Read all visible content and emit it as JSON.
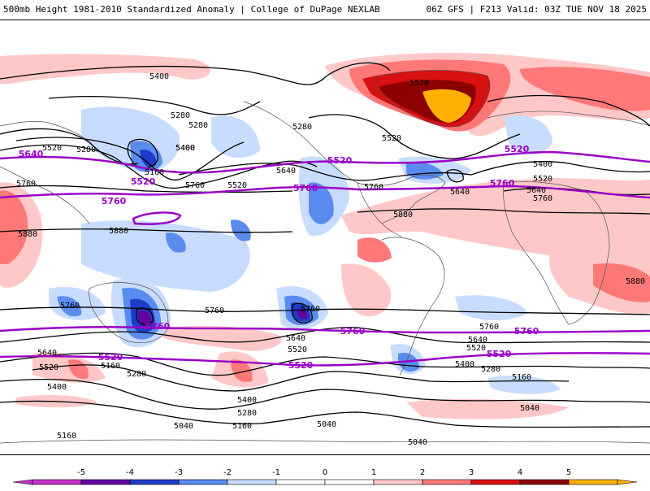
{
  "header": {
    "title_left": "500mb Height 1981-2010 Standardized Anomaly | College of DuPage NEXLAB",
    "title_right": "06Z GFS | F213 Valid: 03Z TUE NOV 18 2025"
  },
  "colors": {
    "anom_pos_1": "#ffc8c8",
    "anom_pos_2": "#ff7878",
    "anom_pos_3": "#d81010",
    "anom_pos_4": "#8c0000",
    "anom_pos_5": "#ffb000",
    "anom_neg_1": "#c8dcff",
    "anom_neg_2": "#5a8cf0",
    "anom_neg_3": "#1e3cc8",
    "anom_neg_4": "#6400a0",
    "contour": "#000000",
    "highlight_contour": "#9a00c8",
    "coast": "#505050"
  },
  "contour_labels": [
    {
      "text": "5400",
      "name": "label-5400-npac-north"
    },
    {
      "text": "5520",
      "name": "label-5520-greenland"
    },
    {
      "text": "5280",
      "name": "label-5280-pacific-a"
    },
    {
      "text": "5280",
      "name": "label-5280-pacific-b"
    },
    {
      "text": "5280",
      "name": "label-5280-canada"
    },
    {
      "text": "5400",
      "name": "label-5400-canada"
    },
    {
      "text": "5520",
      "name": "label-5520-atlantic"
    },
    {
      "text": "5520",
      "name": "label-5520-asia-west"
    },
    {
      "text": "5280",
      "name": "label-5280-asia-west"
    },
    {
      "text": "5400",
      "name": "label-5400-pacific"
    },
    {
      "text": "5160",
      "name": "label-5160-pacific"
    },
    {
      "text": "5640",
      "name": "label-5640-usa"
    },
    {
      "text": "5520",
      "name": "label-5520-pacific-mid"
    },
    {
      "text": "5760",
      "name": "label-5760-pacific-mid"
    },
    {
      "text": "5760",
      "name": "label-5760-west"
    },
    {
      "text": "5760",
      "name": "label-5760-gulf"
    },
    {
      "text": "5880",
      "name": "label-5880-caribbean"
    },
    {
      "text": "5640",
      "name": "label-5640-atlantic"
    },
    {
      "text": "5520",
      "name": "label-5520-europe"
    },
    {
      "text": "5400",
      "name": "label-5400-europe"
    },
    {
      "text": "5640",
      "name": "label-5640-europe"
    },
    {
      "text": "5760",
      "name": "label-5760-europe"
    },
    {
      "text": "5880",
      "name": "label-5880-westpac"
    },
    {
      "text": "5880",
      "name": "label-5880-africa-west"
    },
    {
      "text": "5880",
      "name": "label-5880-indian"
    },
    {
      "text": "5760",
      "name": "label-5760-indian-a"
    },
    {
      "text": "5760",
      "name": "label-5760-spac-a"
    },
    {
      "text": "5760",
      "name": "label-5760-spac-b"
    },
    {
      "text": "5760",
      "name": "label-5760-satl"
    },
    {
      "text": "5640",
      "name": "label-5640-spac"
    },
    {
      "text": "5520",
      "name": "label-5520-spac"
    },
    {
      "text": "5640",
      "name": "label-5640-satl"
    },
    {
      "text": "5520",
      "name": "label-5520-satl"
    },
    {
      "text": "5400",
      "name": "label-5400-satl"
    },
    {
      "text": "5280",
      "name": "label-5280-satl"
    },
    {
      "text": "5160",
      "name": "label-5160-satl"
    },
    {
      "text": "5040",
      "name": "label-5040-satl"
    },
    {
      "text": "5640",
      "name": "label-5640-sio"
    },
    {
      "text": "5520",
      "name": "label-5520-sio"
    },
    {
      "text": "5400",
      "name": "label-5400-sio"
    },
    {
      "text": "5280",
      "name": "label-5280-sio"
    },
    {
      "text": "5160",
      "name": "label-5160-sio"
    },
    {
      "text": "5400",
      "name": "label-5400-spac-south"
    },
    {
      "text": "5280",
      "name": "label-5280-spac-south"
    },
    {
      "text": "5160",
      "name": "label-5160-spac-south"
    },
    {
      "text": "5040",
      "name": "label-5040-spac-south"
    },
    {
      "text": "5040",
      "name": "label-5040-south-a"
    },
    {
      "text": "5040",
      "name": "label-5040-south-b"
    },
    {
      "text": "5160",
      "name": "label-5160-south-west"
    }
  ],
  "highlight_labels": [
    {
      "text": "5640",
      "name": "purple-label-5640-west"
    },
    {
      "text": "5520",
      "name": "purple-label-5520-npac"
    },
    {
      "text": "5760",
      "name": "purple-label-5760-npac"
    },
    {
      "text": "5520",
      "name": "purple-label-5520-usa"
    },
    {
      "text": "5760",
      "name": "purple-label-5760-usa"
    },
    {
      "text": "5760",
      "name": "purple-label-5760-atl"
    },
    {
      "text": "5520",
      "name": "purple-label-5520-eur"
    },
    {
      "text": "5760",
      "name": "purple-label-5760-sio"
    },
    {
      "text": "5760",
      "name": "purple-label-5760-satl"
    },
    {
      "text": "5760",
      "name": "purple-label-5760-sind"
    },
    {
      "text": "5520",
      "name": "purple-label-5520-sio"
    },
    {
      "text": "5520",
      "name": "purple-label-5520-spac"
    },
    {
      "text": "5520",
      "name": "purple-label-5520-satl"
    }
  ],
  "colorbar": {
    "ticks": [
      "-5",
      "-4",
      "-3",
      "-2",
      "-1",
      "0",
      "1",
      "2",
      "3",
      "4",
      "5"
    ],
    "colors": [
      "#c832c8",
      "#6400a0",
      "#1e3cc8",
      "#5a8cf0",
      "#c8dcff",
      "#ffffff",
      "#ffffff",
      "#ffc8c8",
      "#ff7878",
      "#d81010",
      "#8c0000",
      "#ffb000"
    ]
  }
}
